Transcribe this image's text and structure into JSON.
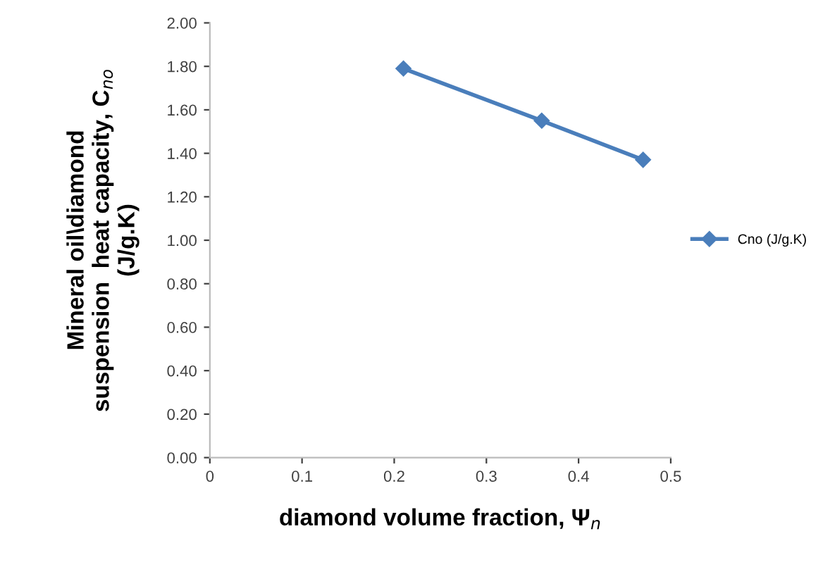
{
  "chart_data": {
    "type": "line",
    "xlabel": "diamond volume fraction, Ψ$_{n}$",
    "ylabel": "Mineral oil\\diamond\nsuspension  heat capacity, C$_{no}$\n(J/g.K)",
    "x": [
      0.21,
      0.36,
      0.47
    ],
    "series": [
      {
        "name": "Cno (J/g.K)",
        "color": "#4a7ebb",
        "values": [
          1.79,
          1.55,
          1.37
        ]
      }
    ],
    "xlim": [
      0,
      0.5
    ],
    "xticks": [
      0,
      0.1,
      0.2,
      0.3,
      0.4,
      0.5
    ],
    "ylim": [
      0,
      2
    ],
    "yticks": [
      {
        "value": 0,
        "label": "0.00"
      },
      {
        "value": 0.2,
        "label": "0.20"
      },
      {
        "value": 0.4,
        "label": "0.40"
      },
      {
        "value": 0.6,
        "label": "0.60"
      },
      {
        "value": 0.8,
        "label": "0.80"
      },
      {
        "value": 1.0,
        "label": "1.00"
      },
      {
        "value": 1.2,
        "label": "1.20"
      },
      {
        "value": 1.4,
        "label": "1.40"
      },
      {
        "value": 1.6,
        "label": "1.60"
      },
      {
        "value": 1.8,
        "label": "1.80"
      },
      {
        "value": 2.0,
        "label": "2.00"
      }
    ],
    "marker": "diamond",
    "line_style": "solid",
    "grid": false,
    "legend": "right"
  }
}
